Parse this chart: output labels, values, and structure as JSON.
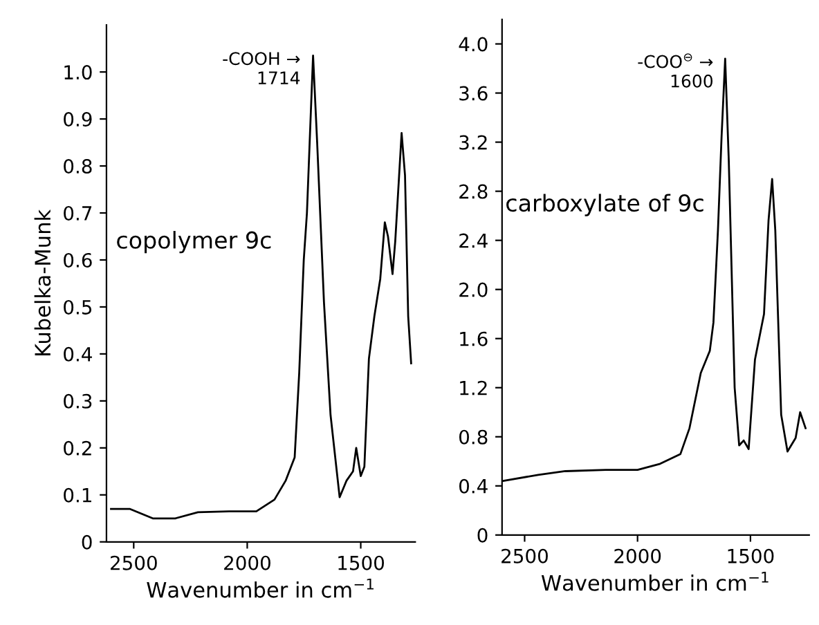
{
  "chart_data": [
    {
      "type": "line",
      "xlabel": "Wavenumber in cm$^{−1}$",
      "ylabel": "Kubelka-Munk",
      "xlim": [
        2620,
        1260
      ],
      "ylim": [
        0,
        1.1
      ],
      "xticks": [
        2500,
        2000,
        1500
      ],
      "yticks": [
        0,
        0.1,
        0.2,
        0.3,
        0.4,
        0.5,
        0.6,
        0.7,
        0.8,
        0.9,
        {
          "value": 1,
          "label": "1.0"
        }
      ],
      "grid": false,
      "legend": false,
      "marker": "none",
      "line_style": "solid",
      "annotations": [
        {
          "text": "-COOH →\n1714",
          "x": 1714,
          "y": 1.035
        },
        "copolymer 9c"
      ],
      "series": [
        {
          "color": "#000000",
          "x": [
            2600,
            2516,
            2416,
            2317,
            2217,
            2080,
            1960,
            1880,
            1831,
            1791,
            1771,
            1751,
            1737,
            1721,
            1710,
            1692,
            1662,
            1633,
            1593,
            1563,
            1534,
            1520,
            1500,
            1484,
            1464,
            1440,
            1414,
            1394,
            1380,
            1360,
            1348,
            1320,
            1305,
            1291,
            1278
          ],
          "values": [
            0.07,
            0.07,
            0.05,
            0.05,
            0.063,
            0.065,
            0.065,
            0.09,
            0.13,
            0.18,
            0.36,
            0.6,
            0.7,
            0.9,
            1.035,
            0.85,
            0.51,
            0.27,
            0.095,
            0.13,
            0.15,
            0.2,
            0.14,
            0.16,
            0.39,
            0.48,
            0.56,
            0.68,
            0.65,
            0.57,
            0.64,
            0.87,
            0.78,
            0.48,
            0.38
          ]
        }
      ]
    },
    {
      "type": "line",
      "xlabel": "Wavenumber in cm$^{−1}$",
      "xlim": [
        2600,
        1240
      ],
      "ylim": [
        0,
        4.2
      ],
      "xticks": [
        2500,
        2000,
        1500
      ],
      "yticks": [
        0,
        0.4,
        0.8,
        1.2,
        1.6,
        {
          "value": 2,
          "label": "2.0"
        },
        2.4,
        2.8,
        3.2,
        3.6,
        {
          "value": 4,
          "label": "4.0"
        }
      ],
      "grid": false,
      "legend": false,
      "marker": "none",
      "line_style": "solid",
      "annotations": [
        {
          "text": "-COO$^{⊖}$ →\n1600",
          "x": 1612,
          "y": 3.88
        },
        "carboxylate of 9c"
      ],
      "series": [
        {
          "color": "#000000",
          "x": [
            2596,
            2440,
            2320,
            2140,
            2000,
            1900,
            1810,
            1770,
            1720,
            1680,
            1664,
            1644,
            1628,
            1612,
            1596,
            1570,
            1550,
            1530,
            1508,
            1480,
            1440,
            1420,
            1404,
            1390,
            1364,
            1336,
            1300,
            1280,
            1256
          ],
          "values": [
            0.44,
            0.49,
            0.52,
            0.53,
            0.53,
            0.58,
            0.66,
            0.87,
            1.32,
            1.5,
            1.73,
            2.48,
            3.24,
            3.88,
            3.05,
            1.2,
            0.73,
            0.77,
            0.7,
            1.43,
            1.8,
            2.56,
            2.9,
            2.48,
            0.98,
            0.68,
            0.79,
            1.0,
            0.87
          ]
        }
      ]
    }
  ]
}
